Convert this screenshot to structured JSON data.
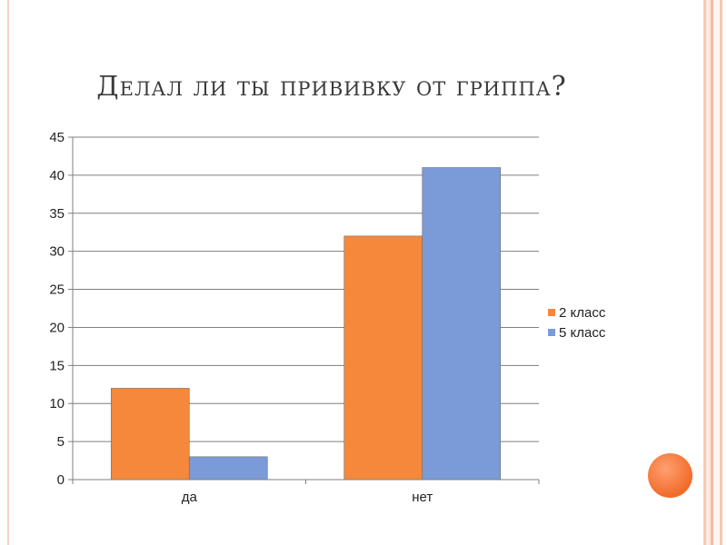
{
  "slide": {
    "title": "Делал ли ты прививку от гриппа?"
  },
  "chart_data": {
    "type": "bar",
    "title": "",
    "xlabel": "",
    "ylabel": "",
    "categories": [
      "да",
      "нет"
    ],
    "series": [
      {
        "name": "2 класс",
        "values": [
          12,
          32
        ],
        "color": "#f5883a"
      },
      {
        "name": "5 класс",
        "values": [
          3,
          41
        ],
        "color": "#7b9bd8"
      }
    ],
    "ylim": [
      0,
      45
    ],
    "yticks": [
      "0",
      "5",
      "10",
      "15",
      "20",
      "25",
      "30",
      "35",
      "40",
      "45"
    ],
    "grid": true,
    "legend_position": "right"
  }
}
